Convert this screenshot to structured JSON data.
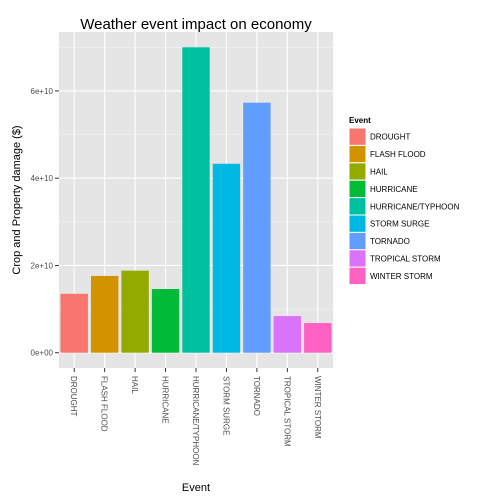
{
  "chart_data": {
    "type": "bar",
    "title": "Weather event impact on economy",
    "xlabel": "Event",
    "ylabel": "Crop and Property damage ($)",
    "categories": [
      "DROUGHT",
      "FLASH FLOOD",
      "HAIL",
      "HURRICANE",
      "HURRICANE/TYPHOON",
      "STORM SURGE",
      "TORNADO",
      "TROPICAL STORM",
      "WINTER STORM"
    ],
    "values": [
      13500000000,
      17600000000,
      18800000000,
      14600000000,
      70000000000,
      43300000000,
      57300000000,
      8400000000,
      6800000000
    ],
    "colors": [
      "#F8766D",
      "#D39200",
      "#93AA00",
      "#00BA38",
      "#00C19F",
      "#00B9E3",
      "#619CFF",
      "#DB72FB",
      "#FF61C3"
    ],
    "y_ticks": [
      0,
      20000000000,
      40000000000,
      60000000000
    ],
    "y_tick_labels": [
      "0e+00",
      "2e+10",
      "4e+10",
      "6e+10"
    ],
    "ylim": [
      -3500000000,
      73500000000
    ],
    "grid": true,
    "panel_background": "#E5E5E5",
    "legend": {
      "title": "Event",
      "position": "right",
      "entries": [
        "DROUGHT",
        "FLASH FLOOD",
        "HAIL",
        "HURRICANE",
        "HURRICANE/TYPHOON",
        "STORM SURGE",
        "TORNADO",
        "TROPICAL STORM",
        "WINTER STORM"
      ]
    }
  }
}
